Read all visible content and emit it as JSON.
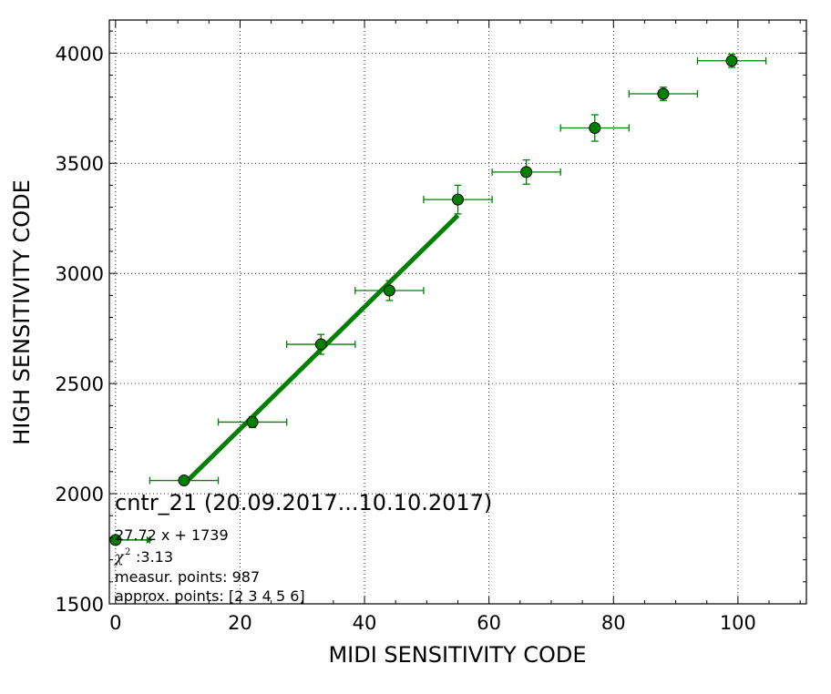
{
  "chart_data": {
    "type": "scatter",
    "xlabel": "MIDI SENSITIVITY CODE",
    "ylabel": "HIGH SENSITIVITY CODE",
    "xlim": [
      -1,
      111
    ],
    "ylim": [
      1500,
      4150
    ],
    "x_ticks": [
      0,
      20,
      40,
      60,
      80,
      100
    ],
    "y_ticks": [
      1500,
      2000,
      2500,
      3000,
      3500,
      4000
    ],
    "grid": true,
    "grid_style": "dotted",
    "marker_color": "#008000",
    "series": [
      {
        "x": [
          0,
          11,
          22,
          33,
          44,
          55,
          66,
          77,
          88,
          99
        ],
        "y": [
          1790,
          2060,
          2325,
          2678,
          2922,
          3335,
          3460,
          3660,
          3815,
          3965
        ],
        "xerr": [
          5.5,
          5.5,
          5.5,
          5.5,
          5.5,
          5.5,
          5.5,
          5.5,
          5.5,
          5.5
        ],
        "yerr": [
          10,
          15,
          25,
          45,
          45,
          65,
          55,
          60,
          30,
          30
        ]
      }
    ],
    "fit": {
      "slope": 27.72,
      "intercept": 1739,
      "x_range": [
        11,
        55
      ],
      "color": "#008000"
    },
    "legend_arrow": {
      "x_from": 0,
      "x_to": 6,
      "y": 1790
    }
  },
  "annotation": {
    "title": "cntr_21 (20.09.2017...10.10.2017)",
    "equation": "27.72 x + 1739",
    "chi_label": "χ",
    "chi_sup": "2",
    "chi_value": ":3.13",
    "measur": "measur. points: 987",
    "approx": "approx. points: [2 3 4 5 6]"
  }
}
